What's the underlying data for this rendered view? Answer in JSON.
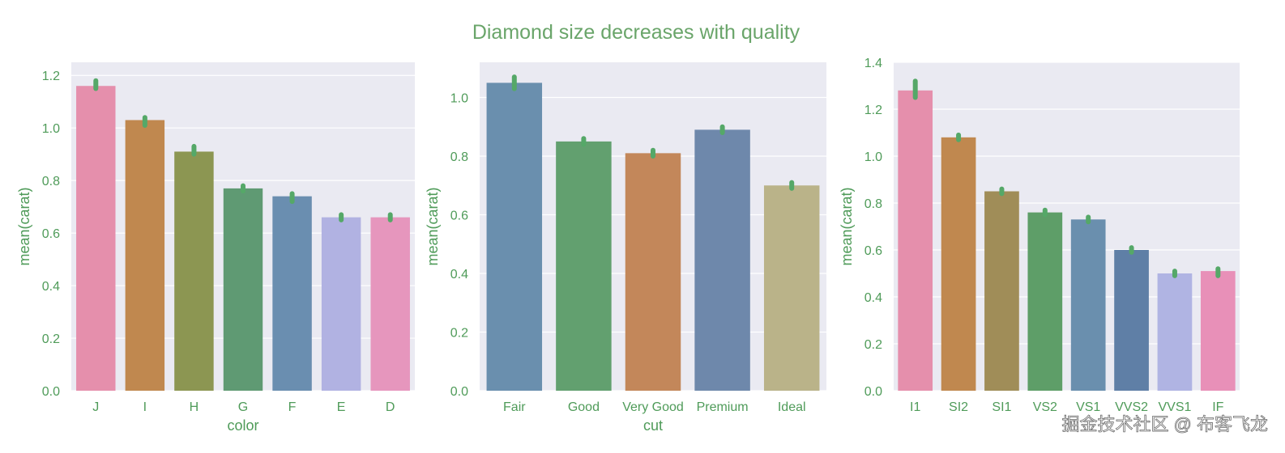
{
  "figure": {
    "title": "Diamond size decreases with quality",
    "title_color": "#6aa56a",
    "text_color": "#4f9b59",
    "panel_background": "#eaeaf2",
    "grid_color": "#ffffff",
    "errorbar_color": "#55a868"
  },
  "watermark": {
    "text": "掘金技术社区 @ 布客飞龙"
  },
  "chart_data": [
    {
      "type": "bar",
      "xlabel": "color",
      "ylabel": "mean(carat)",
      "ylim": [
        0,
        1.25
      ],
      "yticks": [
        0.0,
        0.2,
        0.4,
        0.6,
        0.8,
        1.0,
        1.2
      ],
      "ytick_labels": [
        "0.0",
        "0.2",
        "0.4",
        "0.6",
        "0.8",
        "1.0",
        "1.2"
      ],
      "grid": true,
      "categories": [
        "J",
        "I",
        "H",
        "G",
        "F",
        "E",
        "D"
      ],
      "values": [
        1.16,
        1.03,
        0.91,
        0.77,
        0.74,
        0.66,
        0.66
      ],
      "ci_low": [
        1.15,
        1.01,
        0.9,
        0.76,
        0.72,
        0.65,
        0.65
      ],
      "ci_high": [
        1.18,
        1.04,
        0.93,
        0.78,
        0.75,
        0.67,
        0.67
      ],
      "colors": [
        "#e58fac",
        "#c0884f",
        "#8c9652",
        "#5f9a73",
        "#6a8eb0",
        "#b1b2e2",
        "#e696bd"
      ]
    },
    {
      "type": "bar",
      "xlabel": "cut",
      "ylabel": "mean(carat)",
      "ylim": [
        0,
        1.12
      ],
      "yticks": [
        0.0,
        0.2,
        0.4,
        0.6,
        0.8,
        1.0
      ],
      "ytick_labels": [
        "0.0",
        "0.2",
        "0.4",
        "0.6",
        "0.8",
        "1.0"
      ],
      "grid": true,
      "categories": [
        "Fair",
        "Good",
        "Very Good",
        "Premium",
        "Ideal"
      ],
      "values": [
        1.05,
        0.85,
        0.81,
        0.89,
        0.7
      ],
      "ci_low": [
        1.03,
        0.84,
        0.8,
        0.88,
        0.69
      ],
      "ci_high": [
        1.07,
        0.86,
        0.82,
        0.9,
        0.71
      ],
      "colors": [
        "#6a8fae",
        "#62a06f",
        "#c3875a",
        "#6e88ab",
        "#bab389"
      ]
    },
    {
      "type": "bar",
      "xlabel": "",
      "ylabel": "mean(carat)",
      "ylim": [
        0,
        1.4
      ],
      "yticks": [
        0.0,
        0.2,
        0.4,
        0.6,
        0.8,
        1.0,
        1.2,
        1.4
      ],
      "ytick_labels": [
        "0.0",
        "0.2",
        "0.4",
        "0.6",
        "0.8",
        "1.0",
        "1.2",
        "1.4"
      ],
      "grid": true,
      "categories": [
        "I1",
        "SI2",
        "SI1",
        "VS2",
        "VS1",
        "VVS2",
        "VVS1",
        "IF"
      ],
      "values": [
        1.28,
        1.08,
        0.85,
        0.76,
        0.73,
        0.6,
        0.5,
        0.51
      ],
      "ci_low": [
        1.25,
        1.07,
        0.84,
        0.75,
        0.72,
        0.59,
        0.49,
        0.49
      ],
      "ci_high": [
        1.32,
        1.09,
        0.86,
        0.77,
        0.74,
        0.61,
        0.51,
        0.52
      ],
      "colors": [
        "#e58fac",
        "#c0884f",
        "#a08d58",
        "#5e9e68",
        "#6a8fae",
        "#5f7fa6",
        "#b0b4e3",
        "#e890b8"
      ]
    }
  ]
}
